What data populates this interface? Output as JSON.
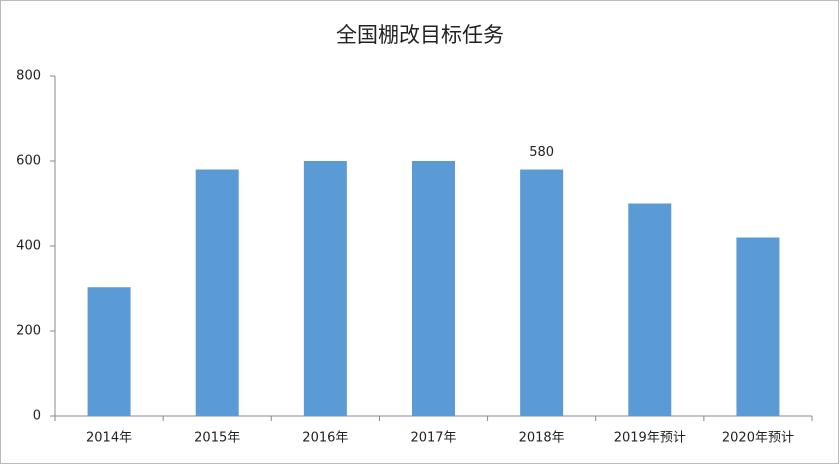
{
  "chart_data": {
    "type": "bar",
    "title": "全国棚改目标任务",
    "categories": [
      "2014年",
      "2015年",
      "2016年",
      "2017年",
      "2018年",
      "2019年预计",
      "2020年预计"
    ],
    "values": [
      303,
      580,
      600,
      600,
      580,
      500,
      420
    ],
    "value_labels": [
      null,
      null,
      null,
      null,
      "580",
      null,
      null
    ],
    "color": "#5b9bd5",
    "ylim": [
      0,
      800
    ],
    "yticks": [
      0,
      200,
      400,
      600,
      800
    ],
    "grid": false
  }
}
